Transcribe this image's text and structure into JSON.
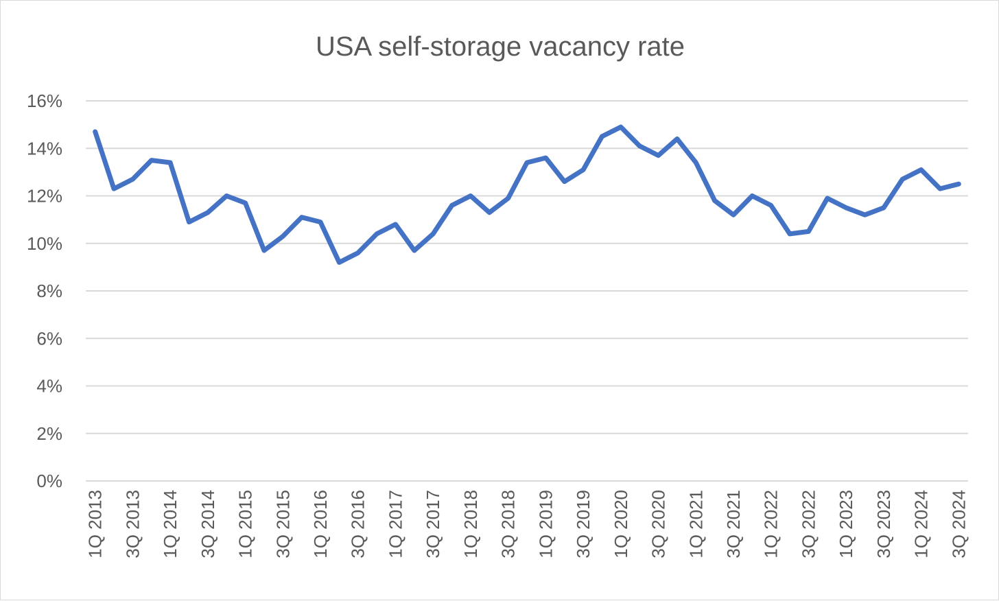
{
  "chart_data": {
    "type": "line",
    "title": "USA self-storage vacancy rate",
    "xlabel": "",
    "ylabel": "",
    "ylim": [
      0,
      16
    ],
    "y_ticks": [
      "0%",
      "2%",
      "4%",
      "6%",
      "8%",
      "10%",
      "12%",
      "14%",
      "16%"
    ],
    "y_tick_values": [
      0,
      2,
      4,
      6,
      8,
      10,
      12,
      14,
      16
    ],
    "grid": "horizontal",
    "legend": "none",
    "line_color": "#4472c4",
    "categories": [
      "1Q 2013",
      "2Q 2013",
      "3Q 2013",
      "4Q 2013",
      "1Q 2014",
      "2Q 2014",
      "3Q 2014",
      "4Q 2014",
      "1Q 2015",
      "2Q 2015",
      "3Q 2015",
      "4Q 2015",
      "1Q 2016",
      "2Q 2016",
      "3Q 2016",
      "4Q 2016",
      "1Q 2017",
      "2Q 2017",
      "3Q 2017",
      "4Q 2017",
      "1Q 2018",
      "2Q 2018",
      "3Q 2018",
      "4Q 2018",
      "1Q 2019",
      "2Q 2019",
      "3Q 2019",
      "4Q 2019",
      "1Q 2020",
      "2Q 2020",
      "3Q 2020",
      "4Q 2020",
      "1Q 2021",
      "2Q 2021",
      "3Q 2021",
      "4Q 2021",
      "1Q 2022",
      "2Q 2022",
      "3Q 2022",
      "4Q 2022",
      "1Q 2023",
      "2Q 2023",
      "3Q 2023",
      "4Q 2023",
      "1Q 2024",
      "2Q 2024",
      "3Q 2024"
    ],
    "x_tick_labels": [
      "1Q 2013",
      "3Q 2013",
      "1Q 2014",
      "3Q 2014",
      "1Q 2015",
      "3Q 2015",
      "1Q 2016",
      "3Q 2016",
      "1Q 2017",
      "3Q 2017",
      "1Q 2018",
      "3Q 2018",
      "1Q 2019",
      "3Q 2019",
      "1Q 2020",
      "3Q 2020",
      "1Q 2021",
      "3Q 2021",
      "1Q 2022",
      "3Q 2022",
      "1Q 2023",
      "3Q 2023",
      "1Q 2024",
      "3Q 2024"
    ],
    "values": [
      14.7,
      12.3,
      12.7,
      13.5,
      13.4,
      10.9,
      11.3,
      12.0,
      11.7,
      9.7,
      10.3,
      11.1,
      10.9,
      9.2,
      9.6,
      10.4,
      10.8,
      9.7,
      10.4,
      11.6,
      12.0,
      11.3,
      11.9,
      13.4,
      13.6,
      12.6,
      13.1,
      14.5,
      14.9,
      14.1,
      13.7,
      14.4,
      13.4,
      11.8,
      11.2,
      12.0,
      11.6,
      10.4,
      10.5,
      11.9,
      11.5,
      11.2,
      11.5,
      12.7,
      13.1,
      12.3,
      12.5
    ]
  }
}
